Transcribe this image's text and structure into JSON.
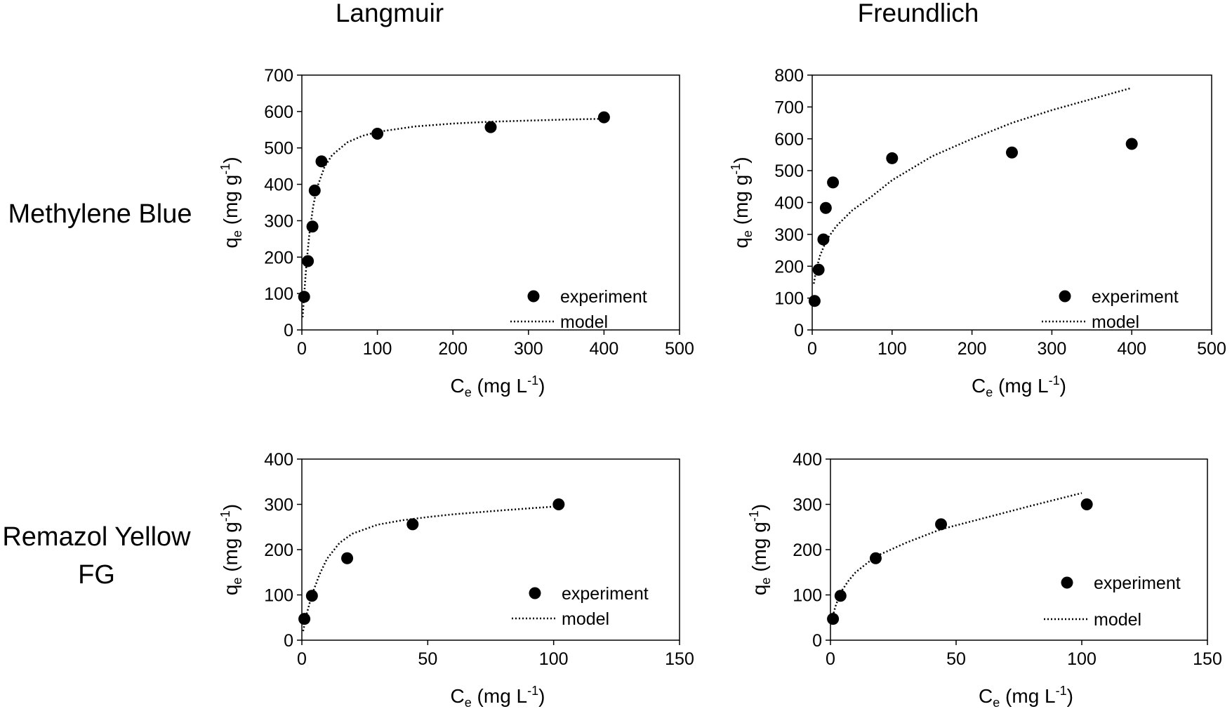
{
  "column_headers": {
    "left": "Langmuir",
    "right": "Freundlich"
  },
  "row_headers": {
    "top": "Methylene Blue",
    "bottom_line1": "Remazol Yellow",
    "bottom_line2": "FG"
  },
  "legend": {
    "experiment": "experiment",
    "model": "model"
  },
  "axis_text": {
    "x_main": "C",
    "x_sub": "e",
    "x_unit_open": " (mg L",
    "x_sup": "-1",
    "x_unit_close": ")",
    "y_main": "q",
    "y_sub": "e",
    "y_unit_open": " (mg g",
    "y_sup": "-1",
    "y_unit_close": ")"
  },
  "chart_data": [
    {
      "id": "mb-langmuir",
      "type": "scatter",
      "xlim": [
        0,
        500
      ],
      "xticks": [
        0,
        100,
        200,
        300,
        400,
        500
      ],
      "ylim": [
        0,
        700
      ],
      "yticks": [
        0,
        100,
        200,
        300,
        400,
        500,
        600,
        700
      ],
      "legend_position": "bottom-right",
      "series": [
        {
          "name": "experiment",
          "points": [
            [
              3,
              91
            ],
            [
              8,
              189
            ],
            [
              14,
              284
            ],
            [
              17,
              383
            ],
            [
              26,
              463
            ],
            [
              100,
              539
            ],
            [
              250,
              557
            ],
            [
              400,
              584
            ]
          ]
        },
        {
          "name": "model",
          "style": "dotted",
          "points": [
            [
              1,
              35
            ],
            [
              3,
              95
            ],
            [
              6,
              180
            ],
            [
              10,
              265
            ],
            [
              15,
              340
            ],
            [
              20,
              390
            ],
            [
              30,
              448
            ],
            [
              40,
              480
            ],
            [
              60,
              515
            ],
            [
              80,
              533
            ],
            [
              100,
              544
            ],
            [
              150,
              559
            ],
            [
              200,
              567
            ],
            [
              250,
              572
            ],
            [
              300,
              575
            ],
            [
              350,
              578
            ],
            [
              400,
              580
            ]
          ]
        }
      ]
    },
    {
      "id": "mb-freundlich",
      "type": "scatter",
      "xlim": [
        0,
        500
      ],
      "xticks": [
        0,
        100,
        200,
        300,
        400,
        500
      ],
      "ylim": [
        0,
        800
      ],
      "yticks": [
        0,
        100,
        200,
        300,
        400,
        500,
        600,
        700,
        800
      ],
      "legend_position": "bottom-right",
      "series": [
        {
          "name": "experiment",
          "points": [
            [
              3,
              91
            ],
            [
              8,
              189
            ],
            [
              14,
              284
            ],
            [
              17,
              383
            ],
            [
              26,
              463
            ],
            [
              100,
              539
            ],
            [
              250,
              557
            ],
            [
              400,
              584
            ]
          ]
        },
        {
          "name": "model",
          "style": "dotted",
          "points": [
            [
              2,
              145
            ],
            [
              5,
              190
            ],
            [
              10,
              235
            ],
            [
              15,
              265
            ],
            [
              20,
              290
            ],
            [
              30,
              325
            ],
            [
              50,
              375
            ],
            [
              75,
              420
            ],
            [
              100,
              470
            ],
            [
              150,
              545
            ],
            [
              200,
              600
            ],
            [
              250,
              650
            ],
            [
              300,
              690
            ],
            [
              350,
              725
            ],
            [
              400,
              760
            ]
          ]
        }
      ]
    },
    {
      "id": "ry-langmuir",
      "type": "scatter",
      "xlim": [
        0,
        150
      ],
      "xticks": [
        0,
        50,
        100,
        150
      ],
      "ylim": [
        0,
        400
      ],
      "yticks": [
        0,
        100,
        200,
        300,
        400
      ],
      "legend_position": "bottom-right",
      "series": [
        {
          "name": "experiment",
          "points": [
            [
              1,
              47
            ],
            [
              4,
              98
            ],
            [
              18,
              181
            ],
            [
              44,
              256
            ],
            [
              102,
              300
            ]
          ]
        },
        {
          "name": "model",
          "style": "dotted",
          "points": [
            [
              0.5,
              20
            ],
            [
              2,
              60
            ],
            [
              4,
              100
            ],
            [
              7,
              145
            ],
            [
              10,
              180
            ],
            [
              15,
              215
            ],
            [
              20,
              235
            ],
            [
              30,
              255
            ],
            [
              40,
              265
            ],
            [
              50,
              272
            ],
            [
              60,
              278
            ],
            [
              80,
              287
            ],
            [
              100,
              295
            ]
          ]
        }
      ]
    },
    {
      "id": "ry-freundlich",
      "type": "scatter",
      "xlim": [
        0,
        150
      ],
      "xticks": [
        0,
        50,
        100,
        150
      ],
      "ylim": [
        0,
        400
      ],
      "yticks": [
        0,
        100,
        200,
        300,
        400
      ],
      "legend_position": "bottom-right",
      "series": [
        {
          "name": "experiment",
          "points": [
            [
              1,
              47
            ],
            [
              4,
              98
            ],
            [
              18,
              181
            ],
            [
              44,
              256
            ],
            [
              102,
              300
            ]
          ]
        },
        {
          "name": "model",
          "style": "dotted",
          "points": [
            [
              0.5,
              45
            ],
            [
              2,
              75
            ],
            [
              4,
              105
            ],
            [
              7,
              130
            ],
            [
              10,
              150
            ],
            [
              18,
              185
            ],
            [
              30,
              215
            ],
            [
              44,
              245
            ],
            [
              60,
              268
            ],
            [
              80,
              297
            ],
            [
              100,
              325
            ]
          ]
        }
      ]
    }
  ]
}
